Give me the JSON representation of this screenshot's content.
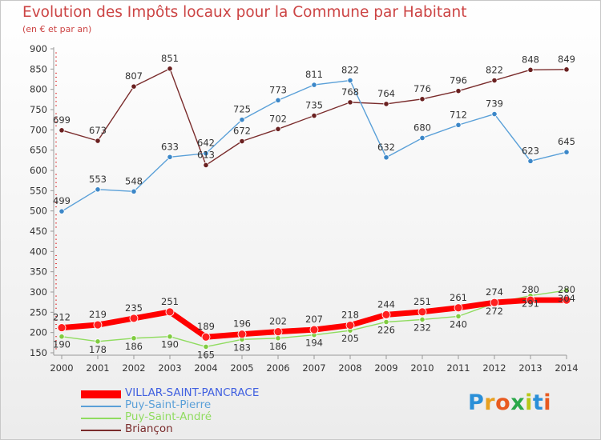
{
  "chart_data": {
    "type": "line",
    "title": "Evolution des Impôts locaux pour la Commune par Habitant",
    "subtitle": "(en € et par an)",
    "x": [
      "2000",
      "2001",
      "2002",
      "2003",
      "2004",
      "2005",
      "2006",
      "2007",
      "2008",
      "2009",
      "2010",
      "2011",
      "2012",
      "2013",
      "2014"
    ],
    "ylim": [
      150,
      900
    ],
    "yticks": [
      150,
      200,
      250,
      300,
      350,
      400,
      450,
      500,
      550,
      600,
      650,
      700,
      750,
      800,
      850,
      900
    ],
    "grid": false,
    "legend_position": "bottom-left",
    "series": [
      {
        "name": "VILLAR-SAINT-PANCRACE",
        "color": "#ff0000",
        "width": 7,
        "marker": "#ff2020",
        "values": [
          212,
          219,
          235,
          251,
          189,
          196,
          202,
          207,
          218,
          244,
          251,
          261,
          274,
          280,
          280
        ]
      },
      {
        "name": "Puy-Saint-Pierre",
        "color": "#5aa0d8",
        "width": 1.4,
        "marker": "#3c87c8",
        "values": [
          499,
          553,
          548,
          633,
          642,
          725,
          773,
          811,
          822,
          632,
          680,
          712,
          739,
          623,
          645
        ]
      },
      {
        "name": "Puy-Saint-André",
        "color": "#90dc60",
        "width": 1.4,
        "marker": "#80cc40",
        "values": [
          190,
          178,
          186,
          190,
          165,
          183,
          186,
          194,
          205,
          226,
          232,
          240,
          272,
          291,
          304
        ]
      },
      {
        "name": "Briançon",
        "color": "#7a2c2c",
        "width": 1.4,
        "marker": "#6a2020",
        "values": [
          699,
          673,
          807,
          851,
          613,
          672,
          702,
          735,
          768,
          764,
          776,
          796,
          822,
          848,
          849
        ]
      }
    ]
  },
  "logo": {
    "p": "P",
    "r": "r",
    "o": "o",
    "x": "x",
    "i1": "i",
    "t": "t",
    "i2": "i"
  }
}
